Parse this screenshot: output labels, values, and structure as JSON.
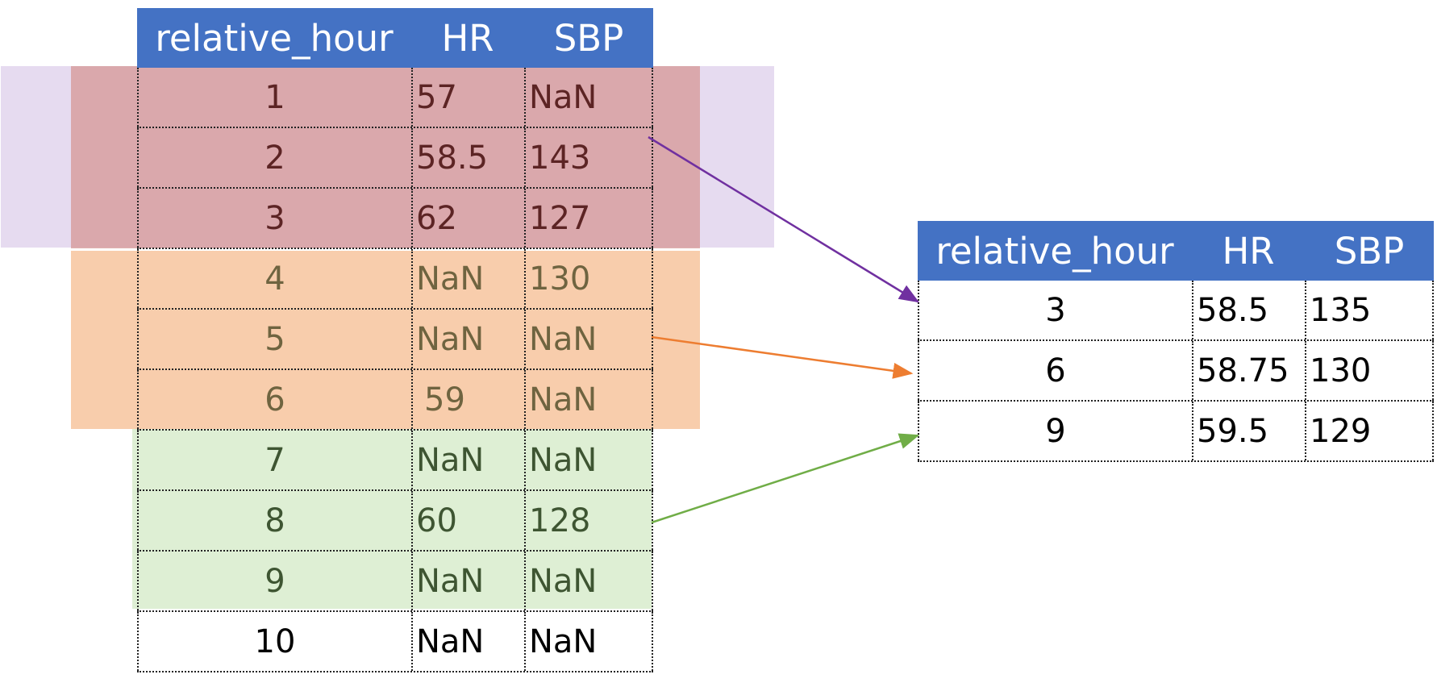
{
  "source_table": {
    "headers": [
      "relative_hour",
      "HR",
      "SBP"
    ],
    "rows": [
      {
        "relative_hour": "1",
        "HR": "57",
        "SBP": "NaN",
        "group": "red"
      },
      {
        "relative_hour": "2",
        "HR": "58.5",
        "SBP": "143",
        "group": "red"
      },
      {
        "relative_hour": "3",
        "HR": "62",
        "SBP": "127",
        "group": "red"
      },
      {
        "relative_hour": "4",
        "HR": "NaN",
        "SBP": "130",
        "group": "orange"
      },
      {
        "relative_hour": "5",
        "HR": "NaN",
        "SBP": "NaN",
        "group": "orange"
      },
      {
        "relative_hour": "6",
        "HR": "59",
        "SBP": "NaN",
        "group": "orange"
      },
      {
        "relative_hour": "7",
        "HR": "NaN",
        "SBP": "NaN",
        "group": "green"
      },
      {
        "relative_hour": "8",
        "HR": "60",
        "SBP": "128",
        "group": "green"
      },
      {
        "relative_hour": "9",
        "HR": "NaN",
        "SBP": "NaN",
        "group": "green"
      },
      {
        "relative_hour": "10",
        "HR": "NaN",
        "SBP": "NaN",
        "group": "plain"
      }
    ]
  },
  "result_table": {
    "headers": [
      "relative_hour",
      "HR",
      "SBP"
    ],
    "rows": [
      {
        "relative_hour": "3",
        "HR": "58.5",
        "SBP": "135"
      },
      {
        "relative_hour": "6",
        "HR": "58.75",
        "SBP": "130"
      },
      {
        "relative_hour": "9",
        "HR": "59.5",
        "SBP": "129"
      }
    ]
  },
  "colors": {
    "header": "#4472c4",
    "arrow_purple": "#7030a0",
    "arrow_orange": "#ed7d31",
    "arrow_green": "#70ad47",
    "band_purple": "#d2bee4",
    "band_red": "#d69492",
    "band_orange": "#f5b280",
    "band_green": "#c8e4b8"
  },
  "arrows": [
    {
      "from_group": "purple",
      "to_result_row": 0
    },
    {
      "from_group": "orange",
      "to_result_row": 1
    },
    {
      "from_group": "green",
      "to_result_row": 2
    }
  ]
}
